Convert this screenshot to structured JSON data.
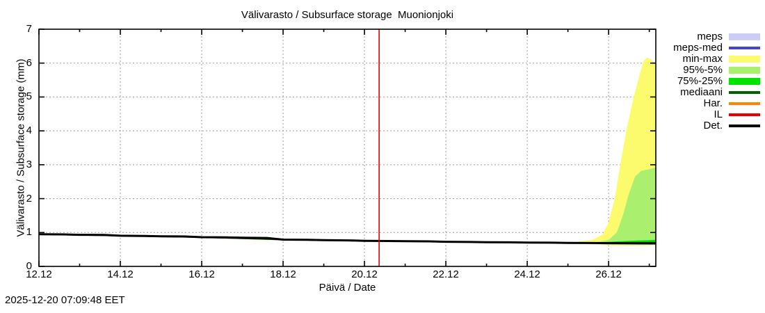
{
  "window": {
    "footer_timestamp": "2025-12-20 07:09:48 EET"
  },
  "chart_data": {
    "type": "area",
    "title": "Välivarasto / Subsurface storage  Muonionjoki",
    "xlabel": "Päivä / Date",
    "ylabel": "Välivarasto / Subsurface storage (mm)",
    "x_axis": {
      "days_span": 15.16,
      "major_ticks": [
        {
          "day": 0,
          "label": "12.12"
        },
        {
          "day": 2,
          "label": "14.12"
        },
        {
          "day": 4,
          "label": "16.12"
        },
        {
          "day": 6,
          "label": "18.12"
        },
        {
          "day": 8,
          "label": "20.12"
        },
        {
          "day": 10,
          "label": "22.12"
        },
        {
          "day": 12,
          "label": "24.12"
        },
        {
          "day": 14,
          "label": "26.12"
        }
      ],
      "minor_tick_days": [
        1,
        3,
        5,
        7,
        9,
        11,
        13,
        15
      ]
    },
    "y_axis": {
      "min": 0,
      "max": 7,
      "ticks": [
        0,
        1,
        2,
        3,
        4,
        5,
        6,
        7
      ]
    },
    "grid": {
      "show": true,
      "color": "#9a9a9a",
      "dash": "2,3"
    },
    "current_time_marker": {
      "day": 8.36,
      "color": "#e60000"
    },
    "colors": {
      "meps": "#ccccf5",
      "meps_med": "#4545cc",
      "min_max": "#fbfb6d",
      "p95_5": "#aaf06e",
      "p75_25": "#00e400",
      "mediaani": "#006400",
      "har": "#ff8400",
      "il": "#e60000",
      "det": "#000000"
    },
    "legend": [
      {
        "label": "meps",
        "type": "band",
        "color": "#ccccf5"
      },
      {
        "label": "meps-med",
        "type": "line",
        "color": "#4545cc"
      },
      {
        "label": "min-max",
        "type": "band",
        "color": "#fbfb6d"
      },
      {
        "label": "95%-5%",
        "type": "band",
        "color": "#aaf06e"
      },
      {
        "label": "75%-25%",
        "type": "band",
        "color": "#00e400"
      },
      {
        "label": "mediaani",
        "type": "line",
        "color": "#006400"
      },
      {
        "label": "Har.",
        "type": "line",
        "color": "#ff8400"
      },
      {
        "label": "IL",
        "type": "line",
        "color": "#e60000"
      },
      {
        "label": "Det.",
        "type": "line",
        "color": "#000000"
      }
    ],
    "bands": [
      {
        "name": "min-max",
        "color": "#fbfb6d",
        "points": [
          [
            8.4,
            0.75,
            0.76
          ],
          [
            9.0,
            0.742,
            0.752
          ],
          [
            9.6,
            0.735,
            0.747
          ],
          [
            10.2,
            0.722,
            0.738
          ],
          [
            11.0,
            0.712,
            0.728
          ],
          [
            11.6,
            0.705,
            0.722
          ],
          [
            12.2,
            0.698,
            0.718
          ],
          [
            12.8,
            0.69,
            0.715
          ],
          [
            13.2,
            0.672,
            0.72
          ],
          [
            13.6,
            0.645,
            0.78
          ],
          [
            13.85,
            0.628,
            0.94
          ],
          [
            14.0,
            0.62,
            1.3
          ],
          [
            14.15,
            0.618,
            2.0
          ],
          [
            14.3,
            0.615,
            3.1
          ],
          [
            14.45,
            0.615,
            4.1
          ],
          [
            14.6,
            0.615,
            4.9
          ],
          [
            14.75,
            0.618,
            5.6
          ],
          [
            14.85,
            0.62,
            6.05
          ],
          [
            14.95,
            0.622,
            6.16
          ],
          [
            15.05,
            0.625,
            6.1
          ],
          [
            15.16,
            0.628,
            5.95
          ]
        ]
      },
      {
        "name": "95%-5%",
        "color": "#aaf06e",
        "points": [
          [
            8.8,
            0.748,
            0.756
          ],
          [
            9.6,
            0.738,
            0.746
          ],
          [
            10.4,
            0.722,
            0.733
          ],
          [
            11.2,
            0.712,
            0.724
          ],
          [
            12.0,
            0.703,
            0.716
          ],
          [
            12.8,
            0.693,
            0.712
          ],
          [
            13.3,
            0.678,
            0.712
          ],
          [
            13.7,
            0.66,
            0.72
          ],
          [
            14.0,
            0.645,
            0.78
          ],
          [
            14.2,
            0.638,
            1.0
          ],
          [
            14.35,
            0.635,
            1.5
          ],
          [
            14.5,
            0.632,
            2.15
          ],
          [
            14.65,
            0.632,
            2.65
          ],
          [
            14.8,
            0.633,
            2.82
          ],
          [
            15.0,
            0.635,
            2.87
          ],
          [
            15.16,
            0.638,
            2.92
          ]
        ]
      },
      {
        "name": "75%-25%",
        "color": "#00e400",
        "points": [
          [
            11.5,
            0.71,
            0.716
          ],
          [
            12.2,
            0.702,
            0.712
          ],
          [
            12.9,
            0.692,
            0.71
          ],
          [
            13.4,
            0.68,
            0.71
          ],
          [
            13.8,
            0.67,
            0.715
          ],
          [
            14.1,
            0.662,
            0.73
          ],
          [
            14.4,
            0.658,
            0.75
          ],
          [
            14.7,
            0.655,
            0.765
          ],
          [
            15.0,
            0.652,
            0.775
          ],
          [
            15.16,
            0.65,
            0.785
          ]
        ]
      }
    ],
    "lines": [
      {
        "name": "Har.",
        "color": "#ff8400",
        "width": 2,
        "points": [
          [
            0,
            0.95
          ],
          [
            2,
            0.906
          ],
          [
            4,
            0.863
          ],
          [
            6,
            0.79
          ],
          [
            8,
            0.755
          ],
          [
            8.36,
            0.752
          ]
        ]
      },
      {
        "name": "mediaani",
        "color": "#006400",
        "width": 2,
        "points": [
          [
            0,
            0.95
          ],
          [
            2,
            0.906
          ],
          [
            4,
            0.863
          ],
          [
            6,
            0.79
          ],
          [
            8,
            0.755
          ],
          [
            10,
            0.726
          ],
          [
            12,
            0.704
          ],
          [
            13,
            0.696
          ],
          [
            14,
            0.698
          ],
          [
            14.6,
            0.7
          ],
          [
            15.16,
            0.705
          ]
        ]
      },
      {
        "name": "Det.",
        "color": "#000000",
        "width": 3,
        "points": [
          [
            0,
            0.95
          ],
          [
            0.6,
            0.945
          ],
          [
            1.0,
            0.932
          ],
          [
            1.6,
            0.927
          ],
          [
            2.0,
            0.906
          ],
          [
            2.6,
            0.9
          ],
          [
            3.0,
            0.888
          ],
          [
            3.6,
            0.882
          ],
          [
            4.0,
            0.863
          ],
          [
            4.6,
            0.857
          ],
          [
            5.0,
            0.846
          ],
          [
            5.6,
            0.84
          ],
          [
            6.0,
            0.79
          ],
          [
            6.6,
            0.784
          ],
          [
            7.0,
            0.773
          ],
          [
            7.6,
            0.768
          ],
          [
            8.0,
            0.755
          ],
          [
            8.6,
            0.75
          ],
          [
            9.0,
            0.744
          ],
          [
            9.6,
            0.739
          ],
          [
            10.0,
            0.726
          ],
          [
            10.6,
            0.721
          ],
          [
            11.0,
            0.714
          ],
          [
            11.6,
            0.71
          ],
          [
            12.0,
            0.704
          ],
          [
            12.6,
            0.699
          ],
          [
            13.0,
            0.694
          ],
          [
            13.6,
            0.689
          ],
          [
            14.0,
            0.685
          ],
          [
            14.6,
            0.681
          ],
          [
            15.16,
            0.68
          ]
        ]
      }
    ]
  }
}
